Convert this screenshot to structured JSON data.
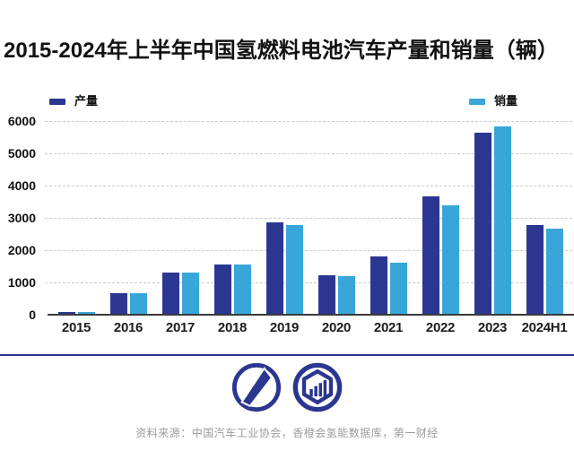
{
  "title": "2015-2024年上半年中国氢燃料电池汽车产量和销量（辆）",
  "legend": {
    "production_label": "产量",
    "sales_label": "销量"
  },
  "colors": {
    "production": "#2b3690",
    "sales": "#38a6d8",
    "rule": "#2b3690",
    "logo": "#2b3690"
  },
  "chart_data": {
    "type": "bar",
    "title": "2015-2024年上半年中国氢燃料电池汽车产量和销量（辆）",
    "categories": [
      "2015",
      "2016",
      "2017",
      "2018",
      "2019",
      "2020",
      "2021",
      "2022",
      "2023",
      "2024H1"
    ],
    "series": [
      {
        "name": "产量",
        "values": [
          10,
          629,
          1272,
          1527,
          2833,
          1199,
          1777,
          3626,
          5600,
          2762
        ]
      },
      {
        "name": "销量",
        "values": [
          10,
          629,
          1275,
          1527,
          2737,
          1177,
          1586,
          3367,
          5805,
          2644
        ]
      }
    ],
    "xlabel": "",
    "ylabel": "",
    "ylim": [
      0,
      6000
    ],
    "yticks": [
      0,
      1000,
      2000,
      3000,
      4000,
      5000,
      6000
    ],
    "grid": "horizontal-dashed",
    "legend_position": "top"
  },
  "logos": {
    "left": "yicai-logo",
    "right": "hydrogen-data-logo"
  },
  "source_note": "资料来源：中国汽车工业协会，香橙会氢能数据库，第一财经"
}
